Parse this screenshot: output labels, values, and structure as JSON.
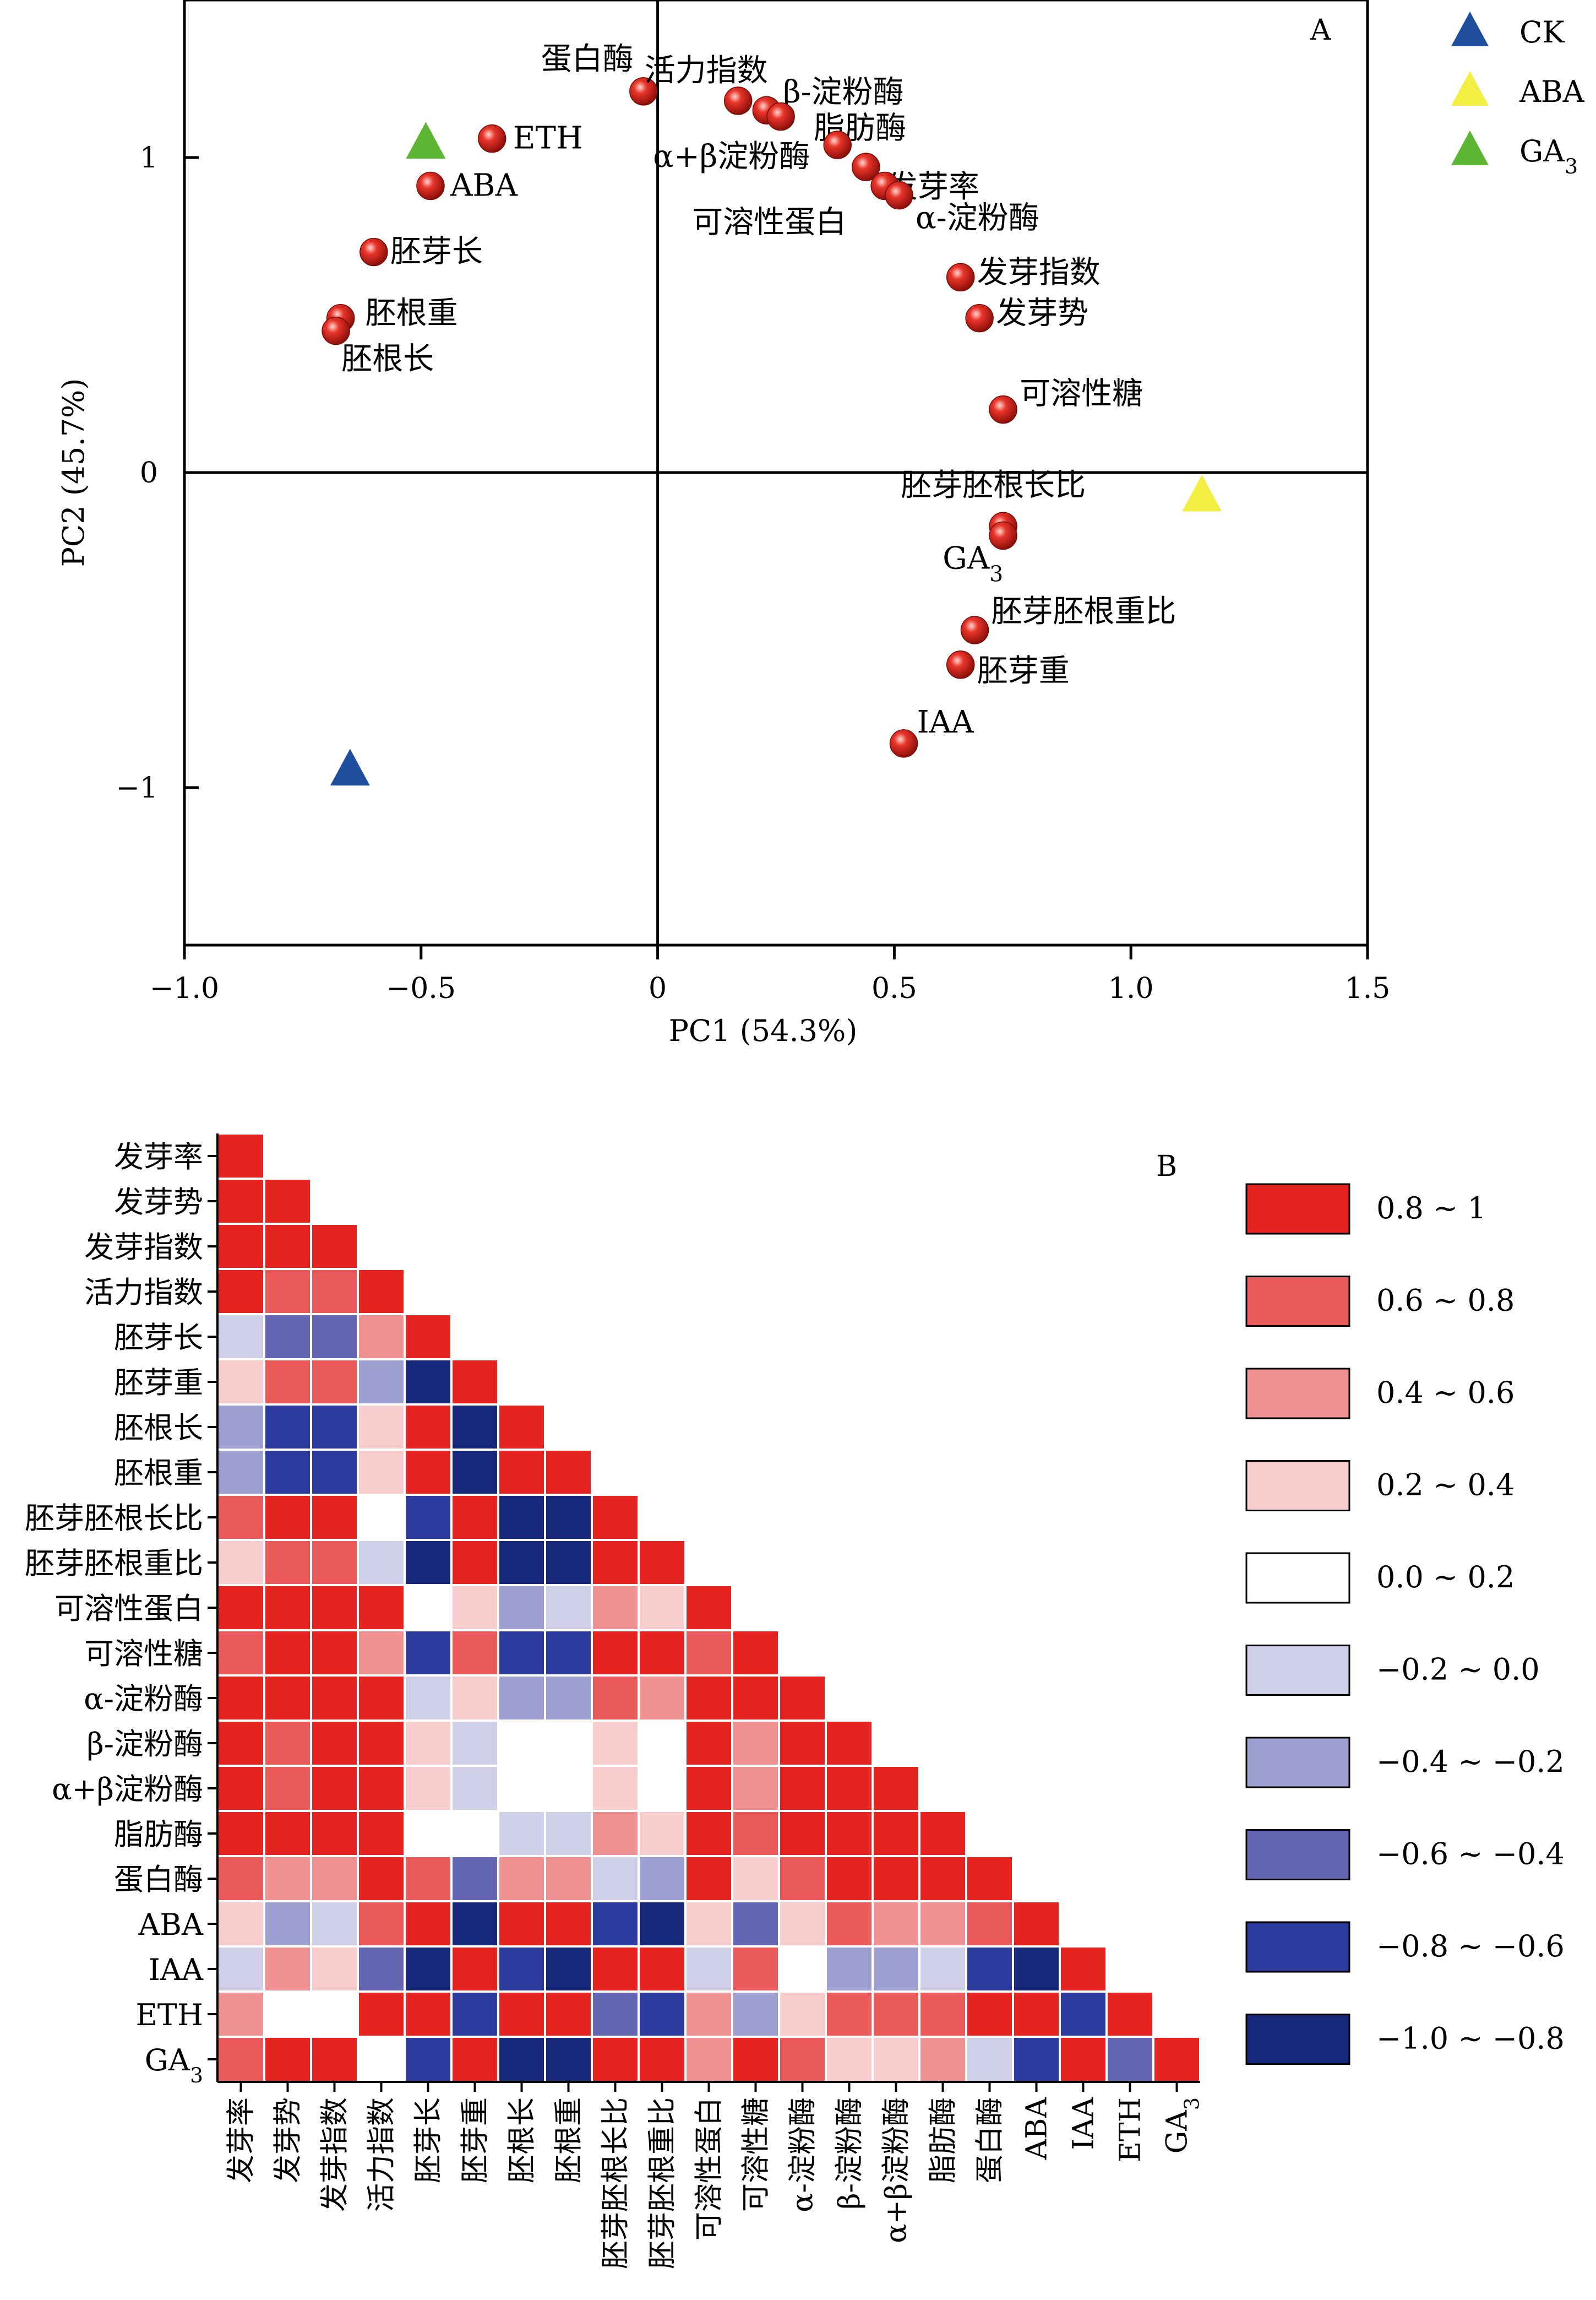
{
  "chart_data": [
    {
      "panel": "A",
      "type": "scatter",
      "xlabel": "PC1 (54.3%)",
      "ylabel": "PC2 (45.7%)",
      "xlim": [
        -1.0,
        1.5
      ],
      "ylim": [
        -1.5,
        1.5
      ],
      "x_ticks": [
        -1.0,
        -0.5,
        0,
        0.5,
        1.0,
        1.5
      ],
      "x_tick_labels": [
        "−1.0",
        "−0.5",
        "0",
        "0.5",
        "1.0",
        "1.5"
      ],
      "y_ticks": [
        1,
        0,
        -1
      ],
      "y_tick_labels": [
        "1",
        "0",
        "−1"
      ],
      "zero_lines": true,
      "variables": [
        {
          "label": "蛋白酶",
          "x": -0.03,
          "y": 1.21
        },
        {
          "label": "活力指数",
          "x": 0.17,
          "y": 1.18
        },
        {
          "label": "β-淀粉酶",
          "x": 0.23,
          "y": 1.15
        },
        {
          "label": "脂肪酶",
          "x": 0.26,
          "y": 1.13
        },
        {
          "label": "α+β淀粉酶",
          "x": 0.38,
          "y": 1.04
        },
        {
          "label": "发芽率",
          "x": 0.44,
          "y": 0.97
        },
        {
          "label": "可溶性蛋白",
          "x": 0.48,
          "y": 0.91
        },
        {
          "label": "α-淀粉酶",
          "x": 0.51,
          "y": 0.88
        },
        {
          "label": "发芽指数",
          "x": 0.64,
          "y": 0.62
        },
        {
          "label": "发芽势",
          "x": 0.68,
          "y": 0.49
        },
        {
          "label": "可溶性糖",
          "x": 0.73,
          "y": 0.2
        },
        {
          "label": "ETH",
          "x": -0.35,
          "y": 1.06
        },
        {
          "label": "ABA",
          "x": -0.48,
          "y": 0.91
        },
        {
          "label": "胚芽长",
          "x": -0.6,
          "y": 0.7
        },
        {
          "label": "胚根重",
          "x": -0.67,
          "y": 0.49
        },
        {
          "label": "胚根长",
          "x": -0.68,
          "y": 0.45
        },
        {
          "label": "胚芽胚根长比",
          "x": 0.73,
          "y": -0.17
        },
        {
          "label": "GA3",
          "x": 0.73,
          "y": -0.2
        },
        {
          "label": "胚芽胚根重比",
          "x": 0.67,
          "y": -0.5
        },
        {
          "label": "胚芽重",
          "x": 0.64,
          "y": -0.61
        },
        {
          "label": "IAA",
          "x": 0.52,
          "y": -0.86
        }
      ],
      "treatments": [
        {
          "name": "CK",
          "x": -0.65,
          "y": -0.94,
          "color": "#1f4e9e"
        },
        {
          "name": "ABA",
          "x": 1.15,
          "y": -0.07,
          "color": "#f2ee42"
        },
        {
          "name": "GA3",
          "x": -0.49,
          "y": 1.05,
          "color": "#5db534"
        }
      ],
      "legend": [
        {
          "label": "CK",
          "color": "#1f4e9e"
        },
        {
          "label": "ABA",
          "color": "#f2ee42"
        },
        {
          "label": "GA3",
          "color": "#5db534"
        }
      ],
      "legend_position": "outside-top-right"
    },
    {
      "panel": "B",
      "type": "heatmap",
      "variables": [
        "发芽率",
        "发芽势",
        "发芽指数",
        "活力指数",
        "胚芽长",
        "胚芽重",
        "胚根长",
        "胚根重",
        "胚芽胚根长比",
        "胚芽胚根重比",
        "可溶性蛋白",
        "可溶性糖",
        "α-淀粉酶",
        "β-淀粉酶",
        "α+β淀粉酶",
        "脂肪酶",
        "蛋白酶",
        "ABA",
        "IAA",
        "ETH",
        "GA3"
      ],
      "layout": "lower-triangle",
      "bins": [
        {
          "label": "0.8 ~ 1",
          "color": "#e52422"
        },
        {
          "label": "0.6 ~ 0.8",
          "color": "#ea5a5a"
        },
        {
          "label": "0.4 ~ 0.6",
          "color": "#f09193"
        },
        {
          "label": "0.2 ~ 0.4",
          "color": "#f8cdce"
        },
        {
          "label": "0.0 ~ 0.2",
          "color": "#ffffff"
        },
        {
          "label": "−0.2 ~ 0.0",
          "color": "#cfd0e8"
        },
        {
          "label": "−0.4 ~ −0.2",
          "color": "#9c9fcf"
        },
        {
          "label": "−0.6 ~ −0.4",
          "color": "#6466b3"
        },
        {
          "label": "−0.8 ~ −0.6",
          "color": "#2d3a9e"
        },
        {
          "label": "−1.0 ~ −0.8",
          "color": "#17287a"
        }
      ],
      "matrix": [
        [
          0.9
        ],
        [
          0.9,
          0.9
        ],
        [
          0.9,
          0.9,
          0.9
        ],
        [
          0.9,
          0.7,
          0.75,
          0.9
        ],
        [
          -0.1,
          -0.5,
          -0.45,
          0.45,
          0.9
        ],
        [
          0.3,
          0.7,
          0.6,
          -0.3,
          -0.9,
          0.9
        ],
        [
          -0.3,
          -0.7,
          -0.65,
          0.25,
          0.9,
          -0.9,
          0.9
        ],
        [
          -0.3,
          -0.7,
          -0.65,
          0.25,
          0.9,
          -0.9,
          0.9,
          0.9
        ],
        [
          0.65,
          0.85,
          0.8,
          0.1,
          -0.8,
          0.9,
          -0.9,
          -0.9,
          0.9
        ],
        [
          0.35,
          0.75,
          0.7,
          -0.1,
          -0.9,
          0.9,
          -0.9,
          -0.9,
          0.9,
          0.9
        ],
        [
          0.9,
          0.9,
          0.9,
          0.9,
          0.05,
          0.25,
          -0.25,
          -0.2,
          0.55,
          0.35,
          0.9
        ],
        [
          0.75,
          0.9,
          0.9,
          0.5,
          -0.7,
          0.75,
          -0.75,
          -0.75,
          0.9,
          0.85,
          0.75,
          0.9
        ],
        [
          0.9,
          0.9,
          0.9,
          0.85,
          -0.1,
          0.3,
          -0.35,
          -0.3,
          0.7,
          0.5,
          0.9,
          0.8,
          0.9
        ],
        [
          0.9,
          0.75,
          0.8,
          0.9,
          0.3,
          -0.1,
          0.1,
          0.15,
          0.3,
          0.1,
          0.9,
          0.55,
          0.85,
          0.9
        ],
        [
          0.9,
          0.75,
          0.8,
          0.9,
          0.3,
          -0.1,
          0.1,
          0.15,
          0.3,
          0.1,
          0.9,
          0.55,
          0.85,
          0.9,
          0.9
        ],
        [
          0.9,
          0.8,
          0.85,
          0.9,
          0.15,
          0.05,
          -0.1,
          -0.05,
          0.45,
          0.25,
          0.9,
          0.7,
          0.9,
          0.9,
          0.9,
          0.9
        ],
        [
          0.7,
          0.45,
          0.5,
          0.9,
          0.7,
          -0.5,
          0.5,
          0.55,
          -0.1,
          -0.35,
          0.8,
          0.25,
          0.75,
          0.9,
          0.9,
          0.85,
          0.9
        ],
        [
          0.25,
          -0.3,
          -0.15,
          0.7,
          0.9,
          -0.9,
          0.9,
          0.85,
          -0.75,
          -0.85,
          0.3,
          -0.45,
          0.2,
          0.6,
          0.55,
          0.45,
          0.75,
          0.9
        ],
        [
          -0.1,
          0.45,
          0.3,
          -0.5,
          -0.9,
          0.9,
          -0.8,
          -0.85,
          0.9,
          0.9,
          -0.1,
          0.7,
          0.05,
          -0.35,
          -0.3,
          -0.2,
          -0.7,
          -0.9,
          0.9
        ],
        [
          0.45,
          0.05,
          0.1,
          0.85,
          0.9,
          -0.75,
          0.8,
          0.85,
          -0.5,
          -0.7,
          0.5,
          -0.3,
          0.35,
          0.7,
          0.7,
          0.6,
          0.9,
          0.9,
          -0.8,
          0.9
        ],
        [
          0.6,
          0.9,
          0.85,
          0.15,
          -0.75,
          0.9,
          -0.9,
          -0.9,
          0.9,
          0.9,
          0.55,
          0.9,
          0.65,
          0.3,
          0.3,
          0.5,
          -0.1,
          -0.65,
          0.9,
          -0.5,
          0.9
        ]
      ]
    }
  ],
  "panel_labels": {
    "a": "A",
    "b": "B"
  }
}
